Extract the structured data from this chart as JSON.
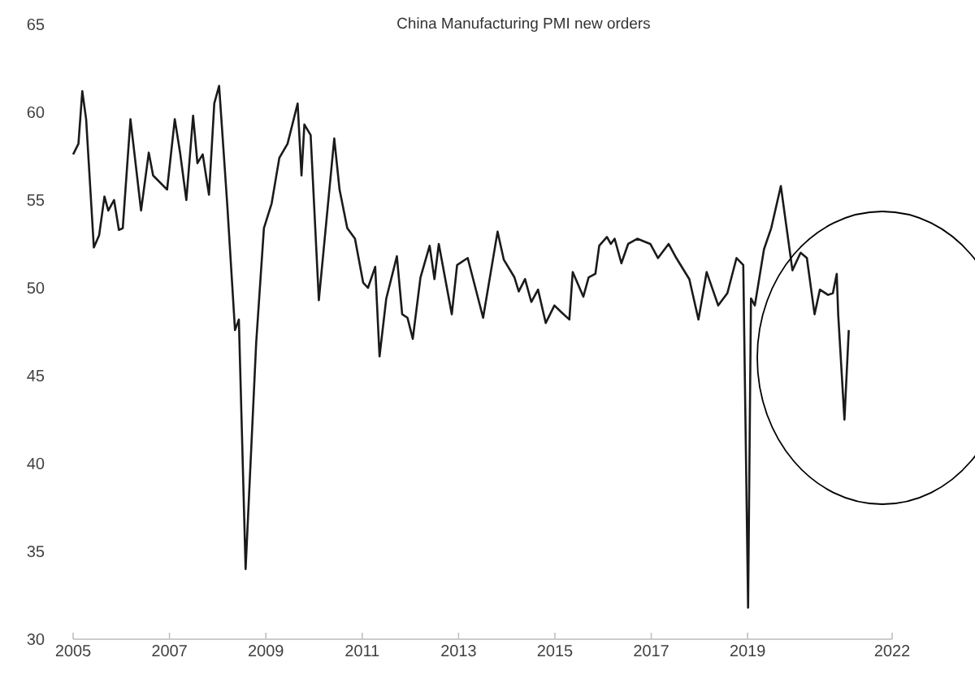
{
  "chart_data": {
    "type": "line",
    "title": "China Manufacturing PMI new orders",
    "x": [
      2005.0,
      2005.11,
      2005.19,
      2005.27,
      2005.43,
      2005.54,
      2005.65,
      2005.73,
      2005.85,
      2005.95,
      2006.03,
      2006.19,
      2006.41,
      2006.57,
      2006.66,
      2006.95,
      2007.11,
      2007.22,
      2007.35,
      2007.49,
      2007.58,
      2007.69,
      2007.82,
      2007.93,
      2008.03,
      2008.2,
      2008.36,
      2008.44,
      2008.58,
      2008.8,
      2008.96,
      2009.12,
      2009.28,
      2009.45,
      2009.66,
      2009.74,
      2009.8,
      2009.93,
      2010.1,
      2010.42,
      2010.53,
      2010.69,
      2010.85,
      2011.02,
      2011.12,
      2011.27,
      2011.36,
      2011.5,
      2011.72,
      2011.83,
      2011.94,
      2012.05,
      2012.21,
      2012.4,
      2012.5,
      2012.59,
      2012.86,
      2012.97,
      2013.19,
      2013.51,
      2013.81,
      2013.94,
      2014.16,
      2014.25,
      2014.38,
      2014.51,
      2014.65,
      2014.81,
      2014.99,
      2015.14,
      2015.3,
      2015.37,
      2015.59,
      2015.7,
      2015.84,
      2015.92,
      2016.08,
      2016.16,
      2016.24,
      2016.38,
      2016.52,
      2016.71,
      2016.98,
      2017.14,
      2017.36,
      2017.52,
      2017.79,
      2017.98,
      2018.15,
      2018.39,
      2018.58,
      2018.77,
      2018.91,
      2019.01,
      2019.07,
      2019.15,
      2019.34,
      2019.49,
      2019.69,
      2019.93,
      2020.1,
      2020.23,
      2020.39,
      2020.5,
      2020.67,
      2020.77,
      2020.85,
      2020.88,
      2021.01,
      2021.1
    ],
    "series": [
      {
        "color": "#1a1a1a",
        "values": [
          57.6,
          58.2,
          61.2,
          59.6,
          52.3,
          53.0,
          55.2,
          54.4,
          55.0,
          53.3,
          53.4,
          59.6,
          54.4,
          57.7,
          56.4,
          55.6,
          59.6,
          57.7,
          55.0,
          59.8,
          57.1,
          57.6,
          55.3,
          60.5,
          61.5,
          54.7,
          47.6,
          48.2,
          34.0,
          46.9,
          53.4,
          54.8,
          57.4,
          58.2,
          60.5,
          56.4,
          59.3,
          58.7,
          49.3,
          58.5,
          55.6,
          53.4,
          52.8,
          50.3,
          50.0,
          51.2,
          46.1,
          49.4,
          51.8,
          48.5,
          48.3,
          47.1,
          50.6,
          52.4,
          50.5,
          52.5,
          48.5,
          51.3,
          51.7,
          48.3,
          53.2,
          51.6,
          50.6,
          49.8,
          50.5,
          49.2,
          49.9,
          48.0,
          49.0,
          48.6,
          48.2,
          50.9,
          49.5,
          50.6,
          50.8,
          52.4,
          52.9,
          52.5,
          52.8,
          51.4,
          52.5,
          52.8,
          52.5,
          51.7,
          52.5,
          51.7,
          50.5,
          48.2,
          50.9,
          49.0,
          49.7,
          51.7,
          51.3,
          31.8,
          49.4,
          49.0,
          52.2,
          53.4,
          55.8,
          51.0,
          52.0,
          51.7,
          48.5,
          49.9,
          49.6,
          49.7,
          50.8,
          48.5,
          42.5,
          47.6
        ]
      }
    ],
    "xlim": [
      2005,
      2022
    ],
    "xticks": [
      2005,
      2007,
      2009,
      2011,
      2013,
      2015,
      2017,
      2019,
      2022
    ],
    "ylim": [
      30,
      65
    ],
    "yticks": [
      30,
      35,
      40,
      45,
      50,
      55,
      60,
      65
    ],
    "grid": false,
    "marker": "none",
    "line_style": "solid"
  }
}
